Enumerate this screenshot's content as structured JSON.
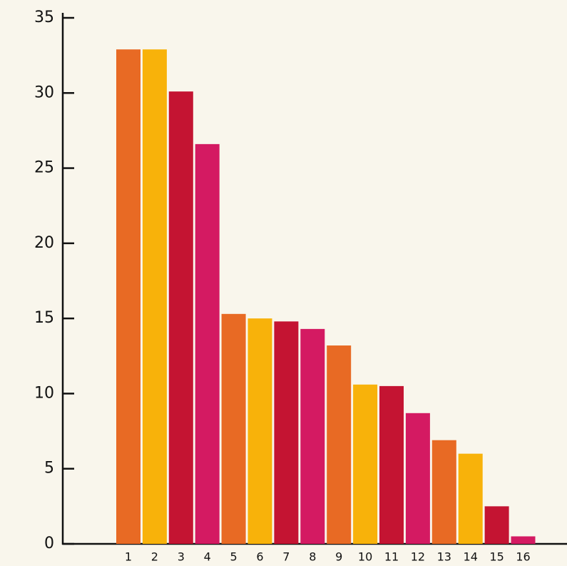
{
  "chart_data": {
    "type": "bar",
    "categories": [
      "1",
      "2",
      "3",
      "4",
      "5",
      "6",
      "7",
      "8",
      "9",
      "10",
      "11",
      "12",
      "13",
      "14",
      "15",
      "16"
    ],
    "values": [
      32.9,
      32.9,
      30.1,
      26.6,
      15.3,
      15.0,
      14.8,
      14.3,
      13.2,
      10.6,
      10.5,
      8.7,
      6.9,
      6.0,
      2.5,
      0.5
    ],
    "colors": [
      "#e86a24",
      "#f8b20a",
      "#c41432",
      "#d41a62",
      "#e86a24",
      "#f8b20a",
      "#c41432",
      "#d41a62",
      "#e86a24",
      "#f8b20a",
      "#c41432",
      "#d41a62",
      "#e86a24",
      "#f8b20a",
      "#c41432",
      "#d41a62"
    ],
    "ylim": [
      0,
      35
    ],
    "yticks": [
      0,
      5,
      10,
      15,
      20,
      25,
      30,
      35
    ],
    "grid": false
  }
}
